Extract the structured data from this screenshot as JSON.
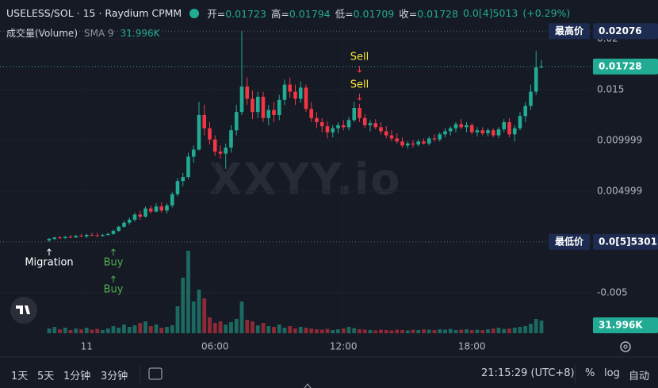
{
  "header": {
    "symbol": "USELESS/SOL · 15 · Raydium CPMM",
    "ohlc": [
      {
        "label": "开=",
        "value": "0.01723"
      },
      {
        "label": "高=",
        "value": "0.01794"
      },
      {
        "label": "低=",
        "value": "0.01709"
      },
      {
        "label": "收=",
        "value": "0.01728"
      }
    ],
    "change": "0.0[4]5013",
    "change_pct": "(+0.29%)"
  },
  "volume_legend": {
    "title": "成交量(Volume)",
    "sma": "SMA 9",
    "value": "31.996K"
  },
  "watermark": "XXYY.io",
  "toolbar": {
    "intervals": [
      "1天",
      "5天",
      "1分钟",
      "3分钟"
    ],
    "clock": "21:15:29 (UTC+8)",
    "options": [
      "%",
      "log",
      "自动"
    ]
  },
  "chart_data": {
    "type": "candlestick",
    "up_color": "#22ab94",
    "down_color": "#f23645",
    "xlim": [
      -9.185,
      101.19
    ],
    "xticks": [
      {
        "value": 7,
        "label": "11"
      },
      {
        "value": 31,
        "label": "06:00"
      },
      {
        "value": 55,
        "label": "12:00"
      },
      {
        "value": 79,
        "label": "18:00"
      }
    ],
    "ylim": [
      -0.009375,
      0.023828
    ],
    "yticks": [
      0.02,
      0.015,
      0.009999,
      0.004999,
      -0.005
    ],
    "grid": true,
    "open": [
      0.00016,
      0.0003,
      0.00045,
      0.0004,
      0.0005,
      0.00045,
      0.0006,
      0.00055,
      0.0007,
      0.00065,
      0.0006,
      0.0007,
      0.0008,
      0.0011,
      0.0015,
      0.0019,
      0.0022,
      0.0027,
      0.0025,
      0.0033,
      0.003,
      0.0035,
      0.0031,
      0.0036,
      0.0047,
      0.006,
      0.0064,
      0.0084,
      0.0091,
      0.0125,
      0.0112,
      0.0101,
      0.0089,
      0.0087,
      0.0093,
      0.011,
      0.0128,
      0.0153,
      0.0141,
      0.0128,
      0.0143,
      0.0122,
      0.013,
      0.0125,
      0.014,
      0.0155,
      0.0148,
      0.0141,
      0.0152,
      0.0131,
      0.0122,
      0.0118,
      0.0114,
      0.0108,
      0.0112,
      0.0115,
      0.0113,
      0.012,
      0.0132,
      0.0122,
      0.0115,
      0.0117,
      0.0113,
      0.0109,
      0.0105,
      0.0102,
      0.0099,
      0.0095,
      0.0097,
      0.0096,
      0.0099,
      0.0097,
      0.0102,
      0.0101,
      0.0106,
      0.0109,
      0.0112,
      0.0116,
      0.0113,
      0.0115,
      0.0108,
      0.011,
      0.0107,
      0.011,
      0.0105,
      0.0111,
      0.0118,
      0.0106,
      0.0112,
      0.0124,
      0.0134,
      0.0148,
      0.01723
    ],
    "high": [
      0.0004,
      0.0005,
      0.0006,
      0.0006,
      0.0007,
      0.0007,
      0.0008,
      0.0008,
      0.0009,
      0.0009,
      0.0008,
      0.0009,
      0.0012,
      0.0016,
      0.0021,
      0.0024,
      0.0029,
      0.0031,
      0.0035,
      0.0036,
      0.0038,
      0.0039,
      0.0038,
      0.0049,
      0.0063,
      0.0068,
      0.0088,
      0.0095,
      0.0138,
      0.0135,
      0.0118,
      0.0105,
      0.0095,
      0.0097,
      0.0115,
      0.0135,
      0.02076,
      0.0162,
      0.0149,
      0.0148,
      0.0148,
      0.0135,
      0.0138,
      0.0145,
      0.016,
      0.0162,
      0.0155,
      0.0158,
      0.0155,
      0.0138,
      0.0128,
      0.0122,
      0.0119,
      0.0115,
      0.0118,
      0.012,
      0.0123,
      0.0138,
      0.0136,
      0.0126,
      0.012,
      0.0121,
      0.0118,
      0.0114,
      0.011,
      0.0107,
      0.0103,
      0.0099,
      0.01,
      0.0101,
      0.0102,
      0.0104,
      0.0106,
      0.0108,
      0.0112,
      0.0114,
      0.0118,
      0.0121,
      0.0118,
      0.0117,
      0.0113,
      0.0113,
      0.0112,
      0.0112,
      0.0113,
      0.0121,
      0.0122,
      0.0115,
      0.0128,
      0.0138,
      0.0155,
      0.0188,
      0.01794
    ],
    "low": [
      5.301e-06,
      0.0002,
      0.0003,
      0.0003,
      0.0004,
      0.0004,
      0.0005,
      0.0004,
      0.0006,
      0.0005,
      0.0005,
      0.0006,
      0.0007,
      0.001,
      0.0014,
      0.0017,
      0.002,
      0.0022,
      0.0024,
      0.0028,
      0.0029,
      0.0029,
      0.0028,
      0.0034,
      0.0045,
      0.0055,
      0.0062,
      0.0078,
      0.009,
      0.0105,
      0.0096,
      0.0085,
      0.0082,
      0.0072,
      0.0088,
      0.0105,
      0.0125,
      0.0135,
      0.0121,
      0.0122,
      0.0118,
      0.0115,
      0.0118,
      0.012,
      0.0135,
      0.0142,
      0.0135,
      0.0137,
      0.0128,
      0.0118,
      0.0112,
      0.0108,
      0.0102,
      0.0103,
      0.0107,
      0.011,
      0.011,
      0.0118,
      0.0118,
      0.0112,
      0.0109,
      0.0111,
      0.0106,
      0.0102,
      0.0099,
      0.0097,
      0.0093,
      0.0092,
      0.0093,
      0.0094,
      0.0096,
      0.0095,
      0.0099,
      0.0099,
      0.0103,
      0.0105,
      0.0108,
      0.0111,
      0.0108,
      0.0106,
      0.0104,
      0.0105,
      0.0104,
      0.0103,
      0.0102,
      0.0108,
      0.0103,
      0.0099,
      0.011,
      0.0118,
      0.013,
      0.0145,
      0.01709
    ],
    "close": [
      0.00031,
      0.00045,
      0.0004,
      0.0005,
      0.00045,
      0.0006,
      0.00055,
      0.0007,
      0.00065,
      0.0006,
      0.0007,
      0.0008,
      0.0011,
      0.0015,
      0.0019,
      0.0022,
      0.0027,
      0.0025,
      0.0033,
      0.003,
      0.0035,
      0.0031,
      0.0036,
      0.0047,
      0.006,
      0.0064,
      0.0084,
      0.0091,
      0.0125,
      0.0112,
      0.0101,
      0.0089,
      0.0087,
      0.0093,
      0.011,
      0.0128,
      0.0153,
      0.0141,
      0.0128,
      0.0143,
      0.0122,
      0.013,
      0.0125,
      0.014,
      0.0155,
      0.0148,
      0.0141,
      0.0152,
      0.0131,
      0.0122,
      0.0118,
      0.0114,
      0.0108,
      0.0112,
      0.0115,
      0.0113,
      0.012,
      0.0132,
      0.0122,
      0.0115,
      0.0117,
      0.0113,
      0.0109,
      0.0105,
      0.0102,
      0.0099,
      0.0095,
      0.0097,
      0.0096,
      0.0099,
      0.0097,
      0.0102,
      0.0101,
      0.0106,
      0.0109,
      0.0112,
      0.0116,
      0.0113,
      0.0115,
      0.0108,
      0.011,
      0.0107,
      0.011,
      0.0105,
      0.0111,
      0.0118,
      0.0106,
      0.0112,
      0.0124,
      0.0134,
      0.0148,
      0.0172,
      0.01728
    ],
    "volume_ylim": [
      0,
      240000
    ],
    "volume": [
      12000,
      16000,
      10000,
      14000,
      8000,
      12000,
      10000,
      14000,
      9000,
      11000,
      8000,
      12000,
      18000,
      14000,
      22000,
      16000,
      20000,
      26000,
      30000,
      18000,
      22000,
      14000,
      16000,
      20000,
      68000,
      140000,
      208000,
      80000,
      110000,
      88000,
      40000,
      26000,
      30000,
      22000,
      28000,
      36000,
      80000,
      34000,
      30000,
      20000,
      26000,
      18000,
      16000,
      22000,
      14000,
      18000,
      12000,
      16000,
      14000,
      12000,
      10000,
      9000,
      11000,
      8000,
      10000,
      12000,
      16000,
      13000,
      10000,
      9000,
      8000,
      7000,
      9000,
      8000,
      7000,
      9000,
      8000,
      7000,
      9000,
      8000,
      10000,
      9000,
      8000,
      10000,
      9000,
      11000,
      8000,
      9000,
      10000,
      8000,
      9000,
      8000,
      10000,
      12000,
      14000,
      11000,
      12000,
      14000,
      16000,
      18000,
      24000,
      36000,
      31996
    ],
    "volume_value_label": "31.996K",
    "high_marker": {
      "label": "最高价",
      "value": 0.02076
    },
    "low_marker": {
      "label": "最低价",
      "value": 5.301e-06,
      "value_label": "0.0[5]5301"
    },
    "last_price": 0.01728,
    "markers": [
      {
        "index": 0,
        "text": "Migration",
        "side": "below",
        "color": "#ffffff"
      },
      {
        "index": 12,
        "text": "Buy",
        "side": "below",
        "color": "#4caf50"
      },
      {
        "index": 12,
        "text": "Buy",
        "side": "below",
        "color": "#4caf50"
      },
      {
        "index": 58,
        "text": "Sell",
        "side": "above",
        "color": "#f5e63b"
      },
      {
        "index": 58,
        "text": "Sell",
        "side": "above",
        "color": "#f5e63b"
      }
    ]
  }
}
